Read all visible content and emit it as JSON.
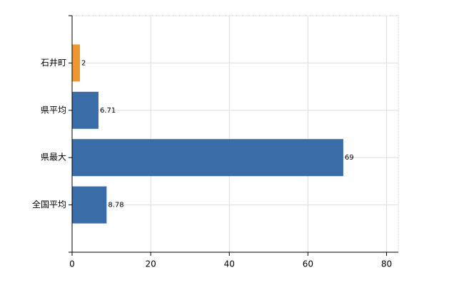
{
  "chart_data": {
    "type": "hbar",
    "categories": [
      "石井町",
      "県平均",
      "県最大",
      "全国平均"
    ],
    "values": [
      2,
      6.71,
      69,
      8.78
    ],
    "colors": [
      "#f0962e",
      "#3a6ca8",
      "#3a6ca8",
      "#3a6ca8"
    ],
    "xlim": [
      0,
      83
    ],
    "xticks": [
      0,
      20,
      40,
      60,
      80
    ],
    "grid": true
  }
}
